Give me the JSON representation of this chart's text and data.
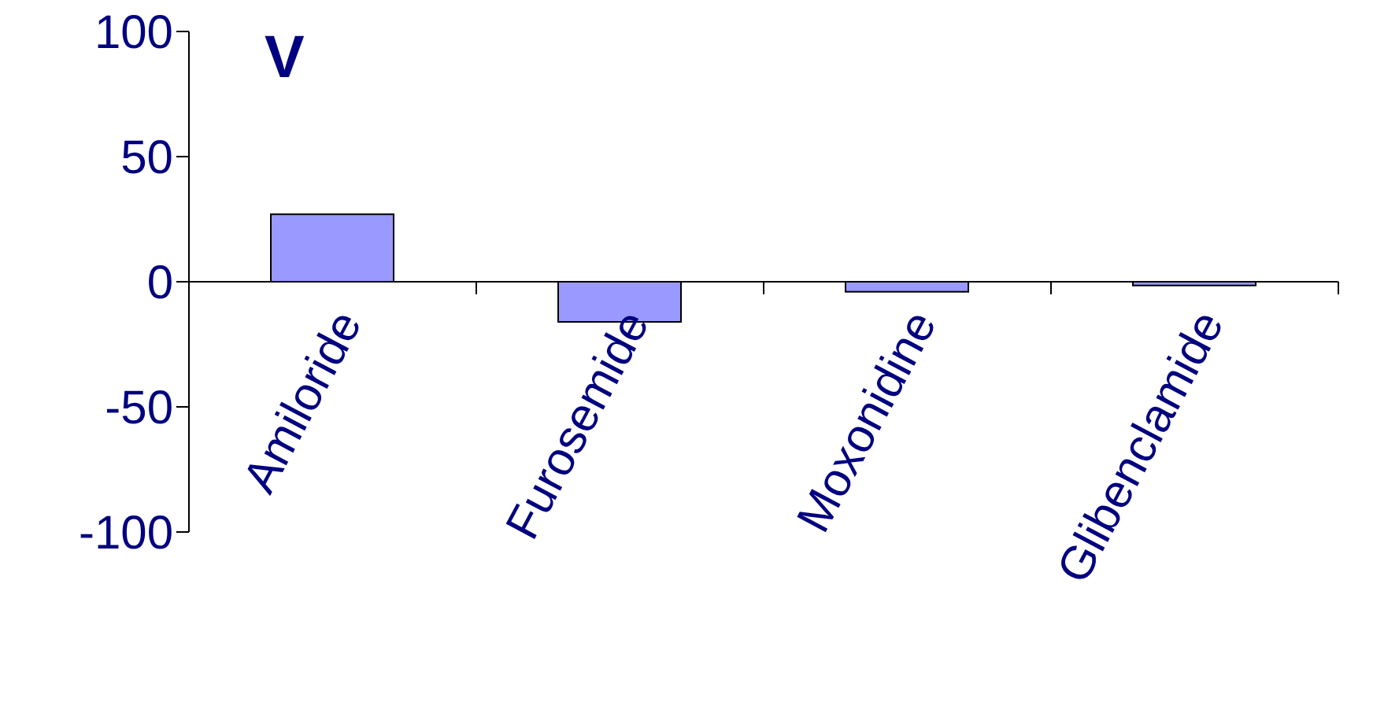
{
  "chart_data": {
    "type": "bar",
    "title": "V",
    "categories": [
      "Amiloride",
      "Furosemide",
      "Moxonidine",
      "Glibenclamide"
    ],
    "values": [
      27,
      -16,
      -4,
      -1.5
    ],
    "color": "#9999ff",
    "ylim": [
      -100,
      100
    ],
    "yticks": [
      -100,
      -50,
      0,
      50,
      100
    ],
    "grid": false,
    "legend": false
  }
}
